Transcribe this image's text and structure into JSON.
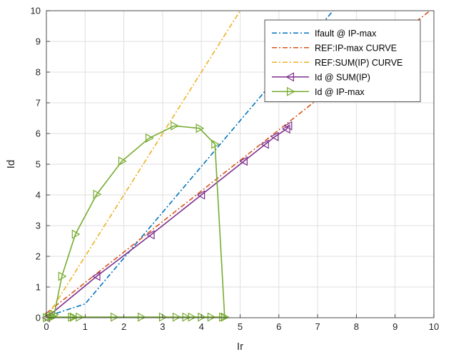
{
  "chart_data": {
    "type": "line",
    "xlabel": "Ir",
    "ylabel": "Id",
    "xlim": [
      0,
      10
    ],
    "ylim": [
      0,
      10
    ],
    "xticks": [
      "0",
      "1",
      "2",
      "3",
      "4",
      "5",
      "6",
      "7",
      "8",
      "9",
      "10"
    ],
    "yticks": [
      "0",
      "1",
      "2",
      "3",
      "4",
      "5",
      "6",
      "7",
      "8",
      "9",
      "10"
    ],
    "grid": true,
    "legend_position": "top-right",
    "series": [
      {
        "name": "Ifault @ IP-max",
        "style": "dashdot",
        "color": "#0072bd",
        "marker": "none",
        "x": [
          0,
          0.2,
          1.0,
          7.4
        ],
        "y": [
          0,
          0.12,
          0.45,
          10
        ]
      },
      {
        "name": "REF:IP-max CURVE",
        "style": "dashdot",
        "color": "#d95319",
        "marker": "none",
        "x": [
          0,
          9.9
        ],
        "y": [
          0.15,
          10
        ]
      },
      {
        "name": "REF:SUM(IP) CURVE",
        "style": "dashdot",
        "color": "#edb120",
        "marker": "none",
        "x": [
          0,
          5.0
        ],
        "y": [
          0,
          10
        ]
      },
      {
        "name": "Id @ SUM(IP)",
        "style": "solid",
        "color": "#7e2f8e",
        "marker": "triangle-left",
        "x": [
          0,
          1.3,
          2.7,
          4.0,
          5.1,
          5.65,
          5.9,
          6.2,
          6.25
        ],
        "y": [
          0,
          1.35,
          2.7,
          4.0,
          5.1,
          5.65,
          5.9,
          6.15,
          6.25
        ]
      },
      {
        "name": "Id @ IP-max",
        "style": "solid",
        "color": "#77ac30",
        "marker": "triangle-right",
        "x": [
          0,
          0.05,
          0.15,
          0.2,
          0.4,
          0.75,
          1.3,
          1.95,
          2.65,
          3.3,
          3.95,
          4.35,
          4.6,
          4.55,
          4.25,
          4.0,
          3.75,
          3.6,
          3.35,
          3.0,
          2.45,
          1.75,
          0.85,
          0.7,
          0.65,
          0.15
        ],
        "y": [
          0,
          0.02,
          0.05,
          0.1,
          1.35,
          2.72,
          4.02,
          5.1,
          5.85,
          6.25,
          6.17,
          5.65,
          0.02,
          0.02,
          0.02,
          0.02,
          0.02,
          0.02,
          0.02,
          0.02,
          0.02,
          0.02,
          0.02,
          0.02,
          0.02,
          0.02
        ]
      }
    ]
  },
  "colors": {
    "background": "#ffffff",
    "axis": "#262626",
    "grid": "#dfdfdf"
  }
}
